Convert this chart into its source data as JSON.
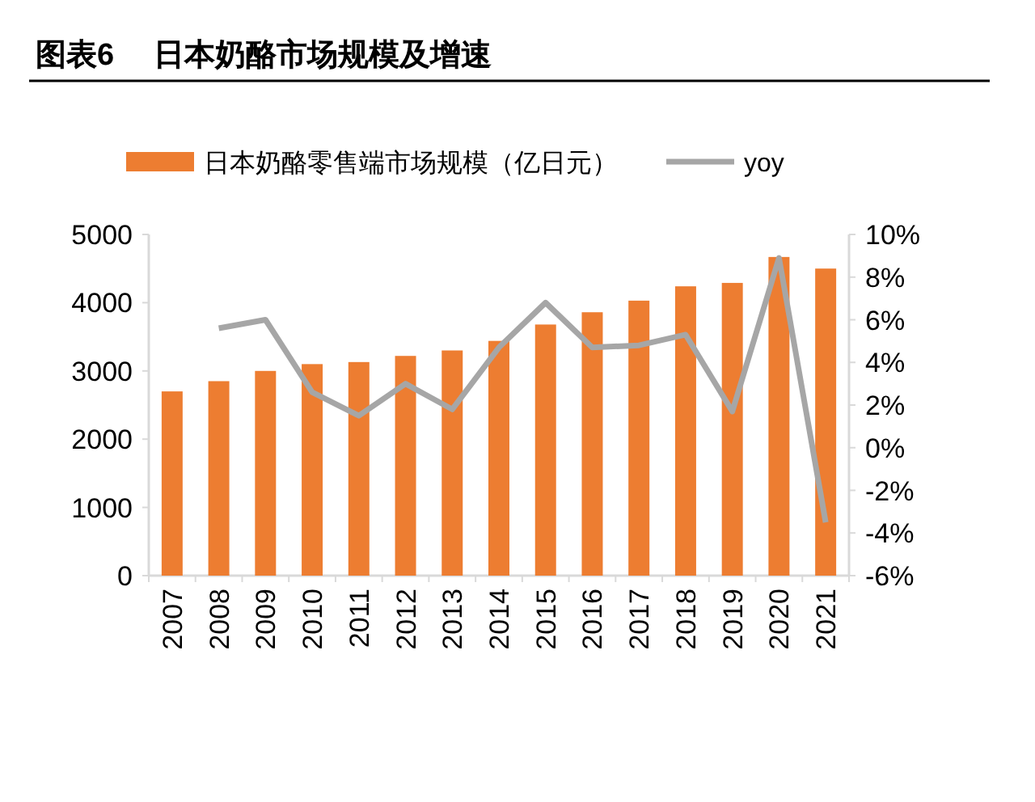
{
  "chart_data": {
    "type": "bar",
    "title": "图表6　 日本奶酪市场规模及增速",
    "categories": [
      "2007",
      "2008",
      "2009",
      "2010",
      "2011",
      "2012",
      "2013",
      "2014",
      "2015",
      "2016",
      "2017",
      "2018",
      "2019",
      "2020",
      "2021"
    ],
    "series": [
      {
        "name": "日本奶酪零售端市场规模（亿日元）",
        "color": "#ed7d31",
        "values": [
          2700,
          2850,
          3000,
          3100,
          3130,
          3220,
          3300,
          3440,
          3680,
          3860,
          4030,
          4240,
          4290,
          4670,
          4500
        ]
      },
      {
        "name": "yoy",
        "color": "#a6a6a6",
        "type": "line",
        "axis": "y2",
        "values": [
          null,
          5.6,
          6.0,
          2.6,
          1.5,
          3.0,
          1.8,
          4.7,
          6.8,
          4.7,
          4.8,
          5.3,
          1.7,
          8.9,
          -3.5
        ]
      }
    ],
    "ylim": [
      0,
      5000
    ],
    "yticks": [
      0,
      1000,
      2000,
      3000,
      4000,
      5000
    ],
    "y2lim": [
      -6,
      10
    ],
    "y2ticks": [
      {
        "value": -6,
        "label": "-6%"
      },
      {
        "value": -4,
        "label": "-4%"
      },
      {
        "value": -2,
        "label": "-2%"
      },
      {
        "value": 0,
        "label": "0%"
      },
      {
        "value": 2,
        "label": "2%"
      },
      {
        "value": 4,
        "label": "4%"
      },
      {
        "value": 6,
        "label": "6%"
      },
      {
        "value": 8,
        "label": "8%"
      },
      {
        "value": 10,
        "label": "10%"
      }
    ],
    "grid": false,
    "legend": "top",
    "marker": "none"
  }
}
